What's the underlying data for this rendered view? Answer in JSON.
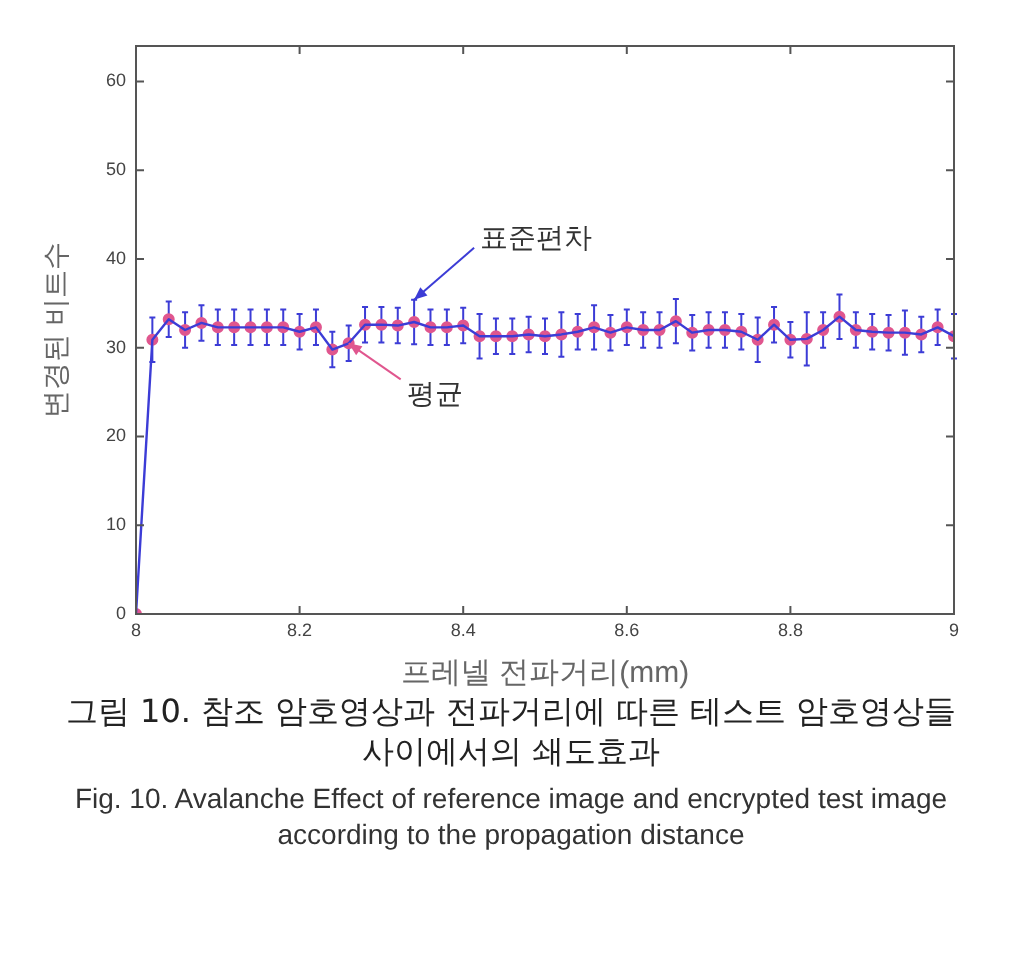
{
  "chart_data": {
    "type": "line",
    "xlabel": "프레넬 전파거리(mm)",
    "ylabel": "변경된 비트수",
    "x": [
      8,
      8.02,
      8.04,
      8.06,
      8.08,
      8.1,
      8.12,
      8.14,
      8.16,
      8.18,
      8.2,
      8.22,
      8.24,
      8.26,
      8.28,
      8.3,
      8.32,
      8.34,
      8.36,
      8.38,
      8.4,
      8.42,
      8.44,
      8.46,
      8.48,
      8.5,
      8.52,
      8.54,
      8.56,
      8.58,
      8.6,
      8.62,
      8.64,
      8.66,
      8.68,
      8.7,
      8.72,
      8.74,
      8.76,
      8.78,
      8.8,
      8.82,
      8.84,
      8.86,
      8.88,
      8.9,
      8.92,
      8.94,
      8.96,
      8.98,
      9
    ],
    "series": [
      {
        "color": "#3c3cd6",
        "marker": "none",
        "values": [
          0,
          30.9,
          33.2,
          32.0,
          32.8,
          32.3,
          32.3,
          32.3,
          32.3,
          32.3,
          31.8,
          32.3,
          29.8,
          30.5,
          32.6,
          32.6,
          32.5,
          32.9,
          32.3,
          32.3,
          32.5,
          31.3,
          31.3,
          31.3,
          31.5,
          31.3,
          31.5,
          31.8,
          32.3,
          31.7,
          32.3,
          32.0,
          32.0,
          33.0,
          31.7,
          32.0,
          32.0,
          31.8,
          30.9,
          32.6,
          30.9,
          31.0,
          32.0,
          33.5,
          32.0,
          31.8,
          31.7,
          31.7,
          31.5,
          32.3,
          31.3
        ],
        "errors": [
          null,
          2.5,
          2,
          2,
          2,
          2,
          2,
          2,
          2,
          2,
          2,
          2,
          2,
          2,
          2,
          2,
          2,
          2.5,
          2,
          2,
          2,
          2.5,
          2,
          2,
          2,
          2,
          2.5,
          2,
          2.5,
          2,
          2,
          2,
          2,
          2.5,
          2,
          2,
          2,
          2,
          2.5,
          2,
          2,
          3,
          2,
          2.5,
          2,
          2,
          2,
          2.5,
          2,
          2,
          2.5
        ]
      },
      {
        "type": "scatter",
        "color": "#e0568e",
        "marker": "circle",
        "values": [
          0,
          30.9,
          33.2,
          32.0,
          32.8,
          32.3,
          32.3,
          32.3,
          32.3,
          32.3,
          31.8,
          32.3,
          29.8,
          30.5,
          32.6,
          32.6,
          32.5,
          32.9,
          32.3,
          32.3,
          32.5,
          31.3,
          31.3,
          31.3,
          31.5,
          31.3,
          31.5,
          31.8,
          32.3,
          31.7,
          32.3,
          32.0,
          32.0,
          33.0,
          31.7,
          32.0,
          32.0,
          31.8,
          30.9,
          32.6,
          30.9,
          31.0,
          32.0,
          33.5,
          32.0,
          31.8,
          31.7,
          31.7,
          31.5,
          32.3,
          31.3
        ]
      }
    ],
    "xlim": [
      8,
      9
    ],
    "xticks": [
      8,
      8.2,
      8.4,
      8.6,
      8.8,
      9
    ],
    "ylim": [
      0,
      64
    ],
    "yticks": [
      0,
      10,
      20,
      30,
      40,
      50,
      60
    ],
    "annotations": [
      {
        "text": "표준편차",
        "x": 8.34,
        "y": 35.4
      },
      {
        "text": "평균",
        "x": 8.26,
        "y": 30.5
      },
      "그림 10. 참조 암호영상과 전파거리에 따른 테스트 암호영상들 사이에서의 쇄도효과",
      "Fig. 10. Avalanche Effect of reference image and encrypted test image according to the propagation distance"
    ]
  }
}
